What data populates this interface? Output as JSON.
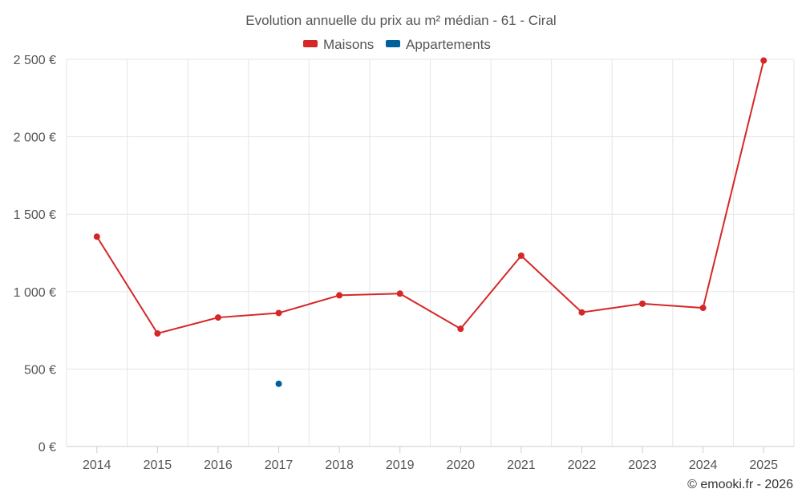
{
  "chart_data": {
    "type": "line",
    "title": "Evolution annuelle du prix au m² médian - 61 - Ciral",
    "categories": [
      "2014",
      "2015",
      "2016",
      "2017",
      "2018",
      "2019",
      "2020",
      "2021",
      "2022",
      "2023",
      "2024",
      "2025"
    ],
    "series": [
      {
        "name": "Maisons",
        "color": "#d62728",
        "values": [
          1355,
          730,
          833,
          862,
          976,
          987,
          760,
          1232,
          866,
          922,
          895,
          2492
        ]
      },
      {
        "name": "Appartements",
        "color": "#00609c",
        "values": [
          null,
          null,
          null,
          405,
          null,
          null,
          null,
          null,
          null,
          null,
          null,
          null
        ]
      }
    ],
    "ylim": [
      0,
      2500
    ],
    "yticks": [
      {
        "value": 0,
        "label": "0 €"
      },
      {
        "value": 500,
        "label": "500 €"
      },
      {
        "value": 1000,
        "label": "1 000 €"
      },
      {
        "value": 1500,
        "label": "1 500 €"
      },
      {
        "value": 2000,
        "label": "2 000 €"
      },
      {
        "value": 2500,
        "label": "2 500 €"
      }
    ],
    "xlabel": "",
    "ylabel": "",
    "grid": true,
    "legend_position": "top-center"
  },
  "credit": "© emooki.fr - 2026"
}
